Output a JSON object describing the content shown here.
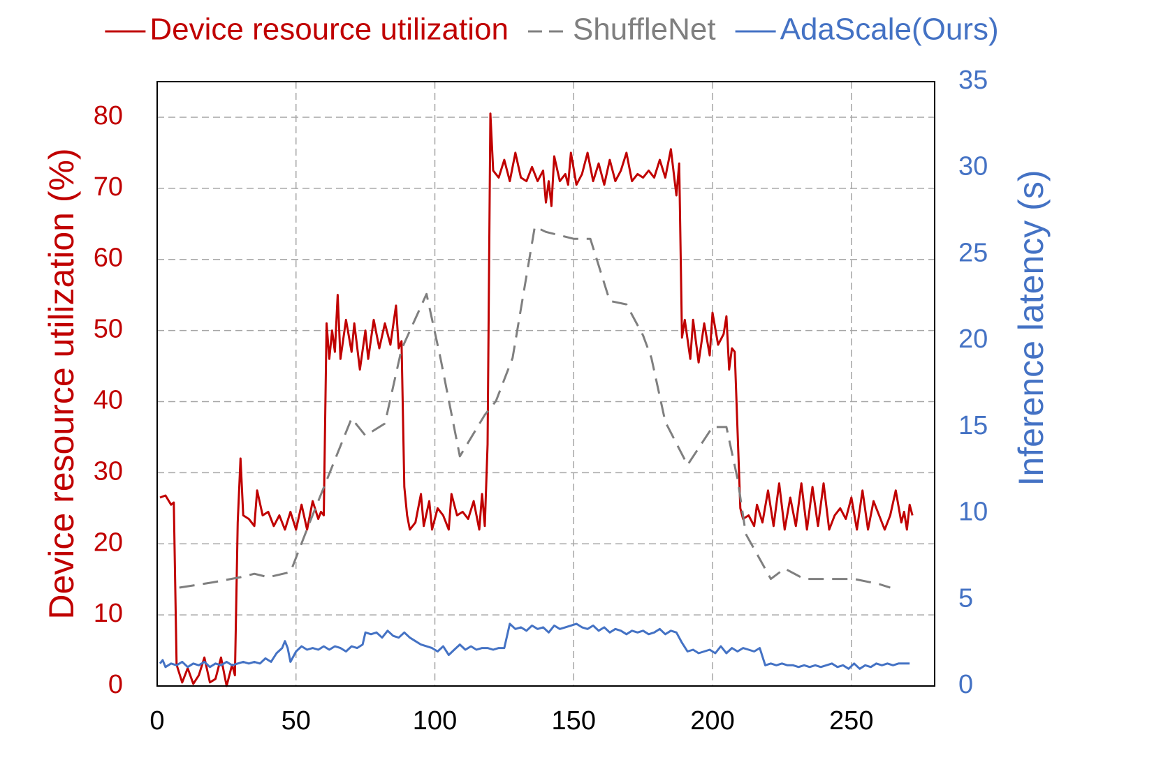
{
  "chart_data": {
    "type": "line",
    "y_label": "Device resource utilization (%)",
    "y2_label": "Inference latency (s)",
    "xlim": [
      0,
      280
    ],
    "xticks": [
      0,
      50,
      100,
      150,
      200,
      250
    ],
    "ylim": [
      0,
      85
    ],
    "yticks": [
      0,
      10,
      20,
      30,
      40,
      50,
      60,
      70,
      80
    ],
    "y2lim": [
      0,
      35
    ],
    "y2ticks": [
      0,
      5,
      10,
      15,
      20,
      25,
      30,
      35
    ],
    "grid": true,
    "legend": "top",
    "series": [
      {
        "name": "Device resource utilization",
        "color": "#c00000",
        "dash": false,
        "x": [
          1,
          3,
          5,
          6,
          7,
          9,
          11,
          13,
          15,
          17,
          19,
          21,
          23,
          25,
          27,
          28,
          29,
          30,
          31,
          33,
          35,
          36,
          38,
          40,
          42,
          44,
          46,
          48,
          50,
          52,
          54,
          56,
          58,
          59,
          60,
          61,
          62,
          63,
          64,
          65,
          66,
          68,
          70,
          71,
          73,
          75,
          76,
          78,
          80,
          82,
          84,
          86,
          87,
          88,
          89,
          90,
          91,
          93,
          95,
          96,
          98,
          99,
          101,
          103,
          105,
          106,
          108,
          110,
          112,
          114,
          116,
          117,
          118,
          119,
          120,
          121,
          123,
          125,
          127,
          129,
          131,
          133,
          135,
          137,
          139,
          140,
          141,
          142,
          143,
          145,
          147,
          148,
          149,
          151,
          153,
          155,
          157,
          159,
          161,
          163,
          165,
          167,
          169,
          171,
          173,
          175,
          177,
          179,
          181,
          183,
          185,
          187,
          188,
          189,
          190,
          192,
          193,
          195,
          197,
          199,
          200,
          202,
          204,
          205,
          206,
          207,
          208,
          210,
          211,
          213,
          215,
          216,
          218,
          220,
          222,
          224,
          226,
          228,
          230,
          232,
          234,
          236,
          238,
          240,
          242,
          244,
          246,
          248,
          250,
          252,
          254,
          256,
          258,
          260,
          262,
          264,
          266,
          268,
          269,
          270,
          271,
          272
        ],
        "values": [
          26.5,
          26.8,
          25.5,
          25.8,
          3,
          0.5,
          2.5,
          0.3,
          1.5,
          4,
          0.5,
          1,
          4,
          0,
          3,
          1.5,
          23,
          32,
          24,
          23.5,
          22.5,
          27.5,
          24,
          24.5,
          22.5,
          24,
          22,
          24.5,
          22,
          25.5,
          22,
          26,
          23.5,
          24.5,
          24,
          51,
          46,
          50,
          47,
          55,
          46,
          51.5,
          47,
          51,
          44.5,
          50,
          46,
          51.5,
          47.5,
          51,
          48,
          53.5,
          47.5,
          48.5,
          28,
          24,
          22,
          23,
          27,
          22.5,
          26,
          22,
          25,
          24,
          22,
          27,
          24,
          24.5,
          23.5,
          26,
          22,
          27,
          22.5,
          34,
          80.5,
          72.5,
          71.5,
          74,
          71,
          75,
          71.5,
          71,
          73,
          71,
          72.5,
          68,
          71,
          67.5,
          74.5,
          71,
          72,
          70.5,
          75,
          70.5,
          72,
          75,
          71,
          73.5,
          70.5,
          74,
          71,
          72.5,
          75,
          71,
          72,
          71.5,
          72.5,
          71.5,
          74,
          71.5,
          75.5,
          69,
          73.5,
          49,
          51.5,
          46,
          51.5,
          45.5,
          51,
          46.5,
          52.5,
          48,
          49.5,
          52,
          44.5,
          47.5,
          47,
          25,
          23.5,
          24,
          22.5,
          25.5,
          23,
          27.5,
          22.5,
          28.5,
          22,
          26.5,
          22.5,
          28.5,
          22,
          28,
          22.5,
          28.5,
          22,
          24,
          25,
          23.5,
          26.5,
          22,
          27.5,
          22,
          26,
          24,
          22,
          24,
          27.5,
          23,
          24.5,
          22,
          25.5,
          24
        ]
      },
      {
        "name": "ShuffleNet",
        "color": "#7f7f7f",
        "dash": true,
        "axis": "y2",
        "x": [
          8,
          20,
          30,
          35,
          40,
          48,
          55,
          60,
          70,
          75,
          82,
          88,
          97,
          102,
          109,
          118,
          122,
          128,
          136,
          140,
          150,
          156,
          163,
          169,
          175,
          178,
          183,
          191,
          200,
          205,
          209,
          212,
          221,
          226,
          233,
          240,
          251,
          260,
          264
        ],
        "values": [
          5.7,
          6.0,
          6.3,
          6.5,
          6.3,
          6.6,
          9.5,
          11.5,
          15.5,
          14.5,
          15.2,
          19.5,
          22.7,
          19,
          13.3,
          15.7,
          16.5,
          19,
          26.6,
          26.3,
          25.9,
          25.9,
          22.3,
          22.1,
          20.3,
          19,
          15.3,
          12.8,
          15,
          15,
          12,
          8.8,
          6.2,
          6.8,
          6.2,
          6.2,
          6.2,
          5.9,
          5.7
        ]
      },
      {
        "name": "AdaScale(Ours)",
        "color": "#4472c4",
        "dash": false,
        "axis": "y2",
        "x": [
          1,
          2,
          3,
          5,
          7,
          9,
          11,
          13,
          15,
          17,
          19,
          21,
          23,
          25,
          27,
          29,
          31,
          33,
          35,
          37,
          39,
          41,
          43,
          45,
          46,
          47,
          48,
          50,
          52,
          54,
          56,
          58,
          60,
          62,
          64,
          66,
          68,
          70,
          72,
          74,
          75,
          77,
          79,
          81,
          83,
          85,
          87,
          89,
          91,
          93,
          95,
          97,
          99,
          101,
          103,
          105,
          107,
          109,
          111,
          113,
          115,
          117,
          119,
          121,
          123,
          125,
          127,
          129,
          131,
          133,
          135,
          137,
          139,
          141,
          143,
          145,
          147,
          149,
          151,
          153,
          155,
          157,
          159,
          161,
          163,
          165,
          167,
          169,
          171,
          173,
          175,
          177,
          179,
          181,
          183,
          185,
          187,
          189,
          191,
          193,
          195,
          197,
          199,
          201,
          203,
          205,
          207,
          209,
          211,
          213,
          215,
          217,
          219,
          221,
          223,
          225,
          227,
          229,
          231,
          233,
          235,
          237,
          239,
          241,
          243,
          245,
          247,
          249,
          251,
          253,
          255,
          257,
          259,
          261,
          263,
          265,
          267,
          269,
          271
        ],
        "values": [
          1.3,
          1.5,
          1.1,
          1.3,
          1.2,
          1.4,
          1.1,
          1.3,
          1.2,
          1.4,
          1.1,
          1.3,
          1.2,
          1.4,
          1.2,
          1.3,
          1.4,
          1.3,
          1.4,
          1.3,
          1.6,
          1.4,
          1.9,
          2.2,
          2.6,
          2.2,
          1.4,
          2.0,
          2.3,
          2.1,
          2.2,
          2.1,
          2.3,
          2.1,
          2.3,
          2.2,
          2.0,
          2.3,
          2.2,
          2.4,
          3.1,
          3.0,
          3.1,
          2.8,
          3.2,
          2.9,
          2.8,
          3.1,
          2.8,
          2.6,
          2.4,
          2.3,
          2.2,
          2.0,
          2.3,
          1.8,
          2.1,
          2.4,
          2.1,
          2.3,
          2.1,
          2.2,
          2.2,
          2.1,
          2.2,
          2.2,
          3.6,
          3.3,
          3.4,
          3.2,
          3.5,
          3.3,
          3.4,
          3.1,
          3.5,
          3.3,
          3.4,
          3.5,
          3.6,
          3.4,
          3.3,
          3.5,
          3.2,
          3.4,
          3.1,
          3.3,
          3.2,
          3.0,
          3.2,
          3.1,
          3.2,
          3.0,
          3.1,
          3.3,
          3.0,
          3.2,
          3.1,
          2.5,
          2.0,
          2.1,
          1.9,
          2.0,
          2.1,
          1.9,
          2.3,
          1.9,
          2.2,
          2.0,
          2.2,
          2.1,
          2.0,
          2.2,
          1.2,
          1.3,
          1.2,
          1.3,
          1.2,
          1.2,
          1.1,
          1.2,
          1.1,
          1.2,
          1.1,
          1.2,
          1.3,
          1.1,
          1.2,
          1.0,
          1.3,
          1.0,
          1.2,
          1.1,
          1.3,
          1.2,
          1.3,
          1.2,
          1.3,
          1.3,
          1.3
        ]
      }
    ]
  }
}
